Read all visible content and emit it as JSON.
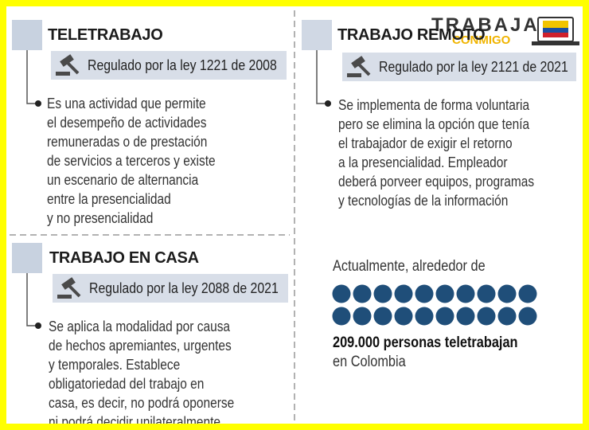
{
  "logo": {
    "line1": "TRABAJA",
    "line2": "CONMIGO"
  },
  "sections": [
    {
      "title": "TELETRABAJO",
      "law": "Regulado por la ley 1221 de 2008",
      "description": [
        "Es una actividad que permite",
        "el desempeño de actividades",
        "remuneradas o de prestación",
        "de servicios a terceros y existe",
        "un escenario de alternancia",
        "entre la presencialidad",
        "y no presencialidad"
      ]
    },
    {
      "title": "TRABAJO REMOTO",
      "law": "Regulado por la ley 2121 de 2021",
      "description": [
        "Se implementa de forma voluntaria",
        "pero se elimina la opción que tenía",
        "el trabajador de exigir el retorno",
        "a la presencialidad. Empleador",
        "deberá porveer equipos, programas",
        "y tecnologías de la información"
      ]
    },
    {
      "title": "TRABAJO EN CASA",
      "law": "Regulado por la ley 2088 de 2021",
      "description": [
        "Se aplica la modalidad por causa",
        "de hechos apremiantes, urgentes",
        "y temporales. Establece",
        "obligatoriedad del trabajo en",
        "casa, es decir, no podrá oponerse",
        "ni podrá decidir unilateralmente"
      ]
    }
  ],
  "stat": {
    "intro": "Actualmente, alrededor de",
    "headline": "209.000 personas teletrabajan",
    "footer": "en Colombia"
  }
}
